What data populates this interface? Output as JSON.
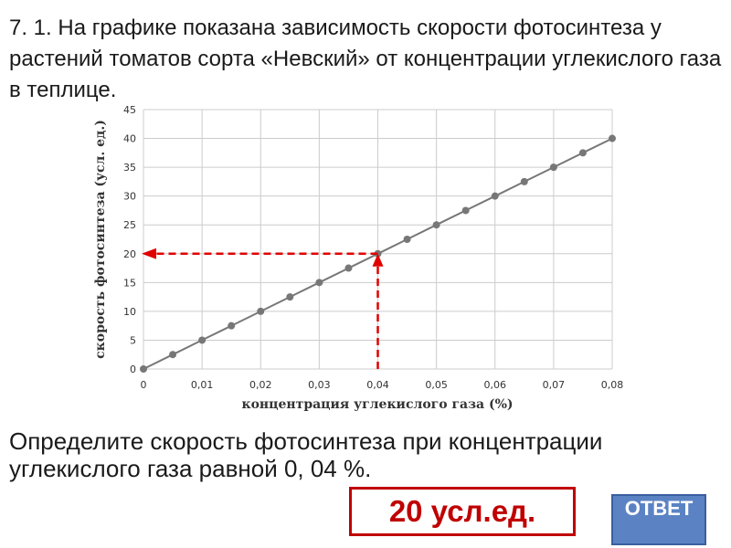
{
  "task": {
    "title": "7. 1. На графике показана зависимость скорости фотосинтеза у растений томатов сорта «Невский» от концентрации углекислого газа в теплице.",
    "question": "Определите скорость фотосинтеза при концентрации углекислого газа равной 0, 04 %.",
    "answer": "20 усл.ед.",
    "reveal_button": "ОТВЕТ"
  },
  "colors": {
    "line": "#777777",
    "marker": "#777777",
    "grid": "#cccccc",
    "guide": "#e00000",
    "answer": "#c00000",
    "button": "#5b83c4"
  },
  "chart_data": {
    "type": "line",
    "xlabel": "концентрация углекислого газа (%)",
    "ylabel": "скорость фотосинтеза (усл. ед.)",
    "xlim": [
      0,
      0.08
    ],
    "ylim": [
      0,
      45
    ],
    "x_ticks": [
      0,
      0.01,
      0.02,
      0.03,
      0.04,
      0.05,
      0.06,
      0.07,
      0.08
    ],
    "x_tick_labels": [
      "0",
      "0,01",
      "0,02",
      "0,03",
      "0,04",
      "0,05",
      "0,06",
      "0,07",
      "0,08"
    ],
    "y_ticks": [
      0,
      5,
      10,
      15,
      20,
      25,
      30,
      35,
      40,
      45
    ],
    "y_tick_labels": [
      "0",
      "5",
      "10",
      "15",
      "20",
      "25",
      "30",
      "35",
      "40",
      "45"
    ],
    "grid": true,
    "x": [
      0,
      0.005,
      0.01,
      0.015,
      0.02,
      0.025,
      0.03,
      0.035,
      0.04,
      0.045,
      0.05,
      0.055,
      0.06,
      0.065,
      0.07,
      0.075,
      0.08
    ],
    "y": [
      0,
      2.5,
      5,
      7.5,
      10,
      12.5,
      15,
      17.5,
      20,
      22.5,
      25,
      27.5,
      30,
      32.5,
      35,
      37.5,
      40
    ],
    "guide_point": {
      "x": 0.04,
      "y": 20
    }
  }
}
